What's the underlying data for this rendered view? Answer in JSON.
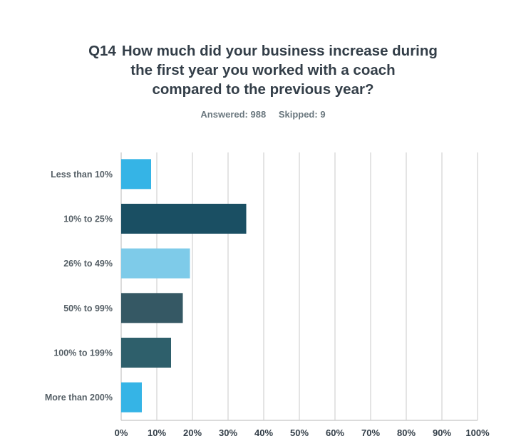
{
  "question": {
    "number": "Q14",
    "lines": [
      "How much did your business increase during",
      "the first year you worked with a coach",
      "compared to the previous year?"
    ]
  },
  "stats": {
    "answered": "Answered: 988",
    "skipped": "Skipped: 9"
  },
  "chart_data": {
    "type": "bar",
    "orientation": "horizontal",
    "categories": [
      "Less than 10%",
      "10% to 25%",
      "26% to 49%",
      "50% to 99%",
      "100% to 199%",
      "More than 200%"
    ],
    "values": [
      8.4,
      35.1,
      19.3,
      17.3,
      14.0,
      5.8
    ],
    "colors": [
      "#35b4e6",
      "#1a4f63",
      "#7ecbe9",
      "#355864",
      "#2e5f6b",
      "#35b4e6"
    ],
    "xlim": [
      0,
      100
    ],
    "xticks": [
      "0%",
      "10%",
      "20%",
      "30%",
      "40%",
      "50%",
      "60%",
      "70%",
      "80%",
      "90%",
      "100%"
    ],
    "unit": "%",
    "grid": true,
    "legend": "none"
  }
}
